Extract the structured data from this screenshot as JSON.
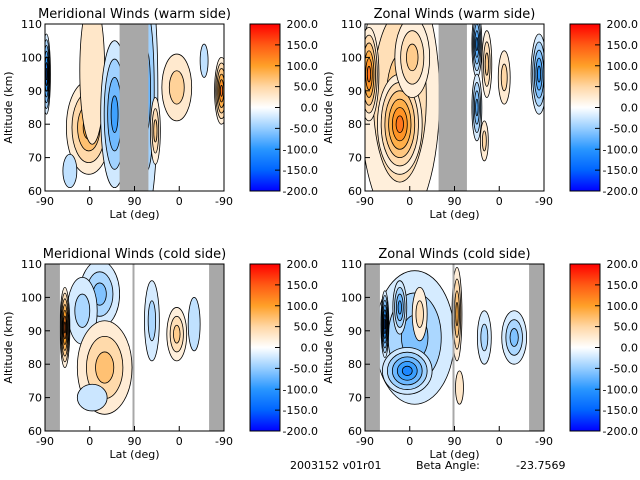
{
  "footer": {
    "id": "2003152 v01r01",
    "beta_label": "Beta Angle:",
    "beta_value": "-23.7569"
  },
  "chart_data": [
    {
      "type": "heatmap",
      "title": "Meridional Winds (warm side)",
      "xlabel": "Lat (deg)",
      "ylabel": "Altitude (km)",
      "xticks": [
        "-90",
        "0",
        "90",
        "0",
        "-90"
      ],
      "yticks": [
        "60",
        "70",
        "80",
        "90",
        "100",
        "110"
      ],
      "ylim": [
        60,
        110
      ],
      "colorbar_ticks": [
        "200.0",
        "150.0",
        "100.0",
        "50.0",
        "0.0",
        "-50.0",
        "-100.0",
        "-150.0",
        "-200.0"
      ],
      "clim": [
        -200,
        200
      ],
      "gaps": [
        [
          150,
          208
        ]
      ],
      "features": [
        {
          "t": 88,
          "alt": 79,
          "v": 95,
          "wt": 45,
          "ha": 14
        },
        {
          "t": 95,
          "alt": 96,
          "v": 30,
          "wt": 25,
          "ha": 22
        },
        {
          "t": 140,
          "alt": 83,
          "v": -90,
          "wt": 28,
          "ha": 22
        },
        {
          "t": 205,
          "alt": 90,
          "v": -70,
          "wt": 22,
          "ha": 36
        },
        {
          "t": 222,
          "alt": 78,
          "v": 60,
          "wt": 10,
          "ha": 10
        },
        {
          "t": 265,
          "alt": 91,
          "v": 55,
          "wt": 30,
          "ha": 10
        },
        {
          "t": 355,
          "alt": 90,
          "v": 130,
          "wt": 14,
          "ha": 10
        },
        {
          "t": 3,
          "alt": 95,
          "v": -140,
          "wt": 8,
          "ha": 12
        },
        {
          "t": 50,
          "alt": 66,
          "v": -30,
          "wt": 14,
          "ha": 5
        },
        {
          "t": 320,
          "alt": 99,
          "v": -30,
          "wt": 8,
          "ha": 5
        }
      ]
    },
    {
      "type": "heatmap",
      "title": "Zonal Winds (warm side)",
      "xlabel": "Lat (deg)",
      "ylabel": "Altitude (km)",
      "xticks": [
        "-90",
        "0",
        "90",
        "0",
        "-90"
      ],
      "yticks": [
        "60",
        "70",
        "80",
        "90",
        "100",
        "110"
      ],
      "ylim": [
        60,
        110
      ],
      "colorbar_ticks": [
        "200.0",
        "150.0",
        "100.0",
        "50.0",
        "0.0",
        "-50.0",
        "-100.0",
        "-150.0",
        "-200.0"
      ],
      "clim": [
        -200,
        200
      ],
      "gaps": [
        [
          148,
          205
        ]
      ],
      "features": [
        {
          "t": 70,
          "alt": 88,
          "v": 60,
          "wt": 80,
          "ha": 38
        },
        {
          "t": 70,
          "alt": 80,
          "v": 130,
          "wt": 45,
          "ha": 15
        },
        {
          "t": 8,
          "alt": 95,
          "v": 130,
          "wt": 20,
          "ha": 14
        },
        {
          "t": 95,
          "alt": 100,
          "v": 60,
          "wt": 35,
          "ha": 12
        },
        {
          "t": 225,
          "alt": 104,
          "v": -100,
          "wt": 10,
          "ha": 10
        },
        {
          "t": 225,
          "alt": 85,
          "v": -80,
          "wt": 10,
          "ha": 10
        },
        {
          "t": 245,
          "alt": 98,
          "v": 60,
          "wt": 10,
          "ha": 10
        },
        {
          "t": 280,
          "alt": 94,
          "v": 50,
          "wt": 12,
          "ha": 8
        },
        {
          "t": 350,
          "alt": 95,
          "v": -100,
          "wt": 16,
          "ha": 12
        },
        {
          "t": 240,
          "alt": 75,
          "v": 50,
          "wt": 8,
          "ha": 6
        }
      ]
    },
    {
      "type": "heatmap",
      "title": "Meridional Winds (cold side)",
      "xlabel": "Lat (deg)",
      "ylabel": "Altitude (km)",
      "xticks": [
        "-90",
        "0",
        "90",
        "0",
        "-90"
      ],
      "yticks": [
        "60",
        "70",
        "80",
        "90",
        "100",
        "110"
      ],
      "ylim": [
        60,
        110
      ],
      "colorbar_ticks": [
        "200.0",
        "150.0",
        "100.0",
        "50.0",
        "0.0",
        "-50.0",
        "-100.0",
        "-150.0",
        "-200.0"
      ],
      "clim": [
        -200,
        200
      ],
      "gaps": [
        [
          0,
          30
        ],
        [
          176,
          180
        ],
        [
          330,
          360
        ]
      ],
      "features": [
        {
          "t": 110,
          "alt": 101,
          "v": -60,
          "wt": 40,
          "ha": 10
        },
        {
          "t": 75,
          "alt": 96,
          "v": -40,
          "wt": 30,
          "ha": 10
        },
        {
          "t": 120,
          "alt": 79,
          "v": 70,
          "wt": 55,
          "ha": 14
        },
        {
          "t": 40,
          "alt": 91,
          "v": 140,
          "wt": 10,
          "ha": 12
        },
        {
          "t": 265,
          "alt": 89,
          "v": 60,
          "wt": 20,
          "ha": 8
        },
        {
          "t": 215,
          "alt": 93,
          "v": -40,
          "wt": 15,
          "ha": 12
        },
        {
          "t": 300,
          "alt": 92,
          "v": -30,
          "wt": 12,
          "ha": 8
        },
        {
          "t": 95,
          "alt": 70,
          "v": -25,
          "wt": 30,
          "ha": 4
        }
      ]
    },
    {
      "type": "heatmap",
      "title": "Zonal Winds (cold side)",
      "xlabel": "Lat (deg)",
      "ylabel": "Altitude (km)",
      "xticks": [
        "-90",
        "0",
        "90",
        "0",
        "-90"
      ],
      "yticks": [
        "60",
        "70",
        "80",
        "90",
        "100",
        "110"
      ],
      "ylim": [
        60,
        110
      ],
      "colorbar_ticks": [
        "200.0",
        "150.0",
        "100.0",
        "50.0",
        "0.0",
        "-50.0",
        "-100.0",
        "-150.0",
        "-200.0"
      ],
      "clim": [
        -200,
        200
      ],
      "gaps": [
        [
          0,
          30
        ],
        [
          176,
          180
        ],
        [
          330,
          360
        ]
      ],
      "features": [
        {
          "t": 100,
          "alt": 88,
          "v": -60,
          "wt": 80,
          "ha": 20
        },
        {
          "t": 85,
          "alt": 78,
          "v": -115,
          "wt": 50,
          "ha": 7
        },
        {
          "t": 70,
          "alt": 97,
          "v": -90,
          "wt": 14,
          "ha": 8
        },
        {
          "t": 110,
          "alt": 95,
          "v": 40,
          "wt": 15,
          "ha": 8
        },
        {
          "t": 185,
          "alt": 95,
          "v": 90,
          "wt": 10,
          "ha": 14
        },
        {
          "t": 40,
          "alt": 92,
          "v": -140,
          "wt": 8,
          "ha": 10
        },
        {
          "t": 300,
          "alt": 88,
          "v": -60,
          "wt": 25,
          "ha": 8
        },
        {
          "t": 240,
          "alt": 88,
          "v": -40,
          "wt": 14,
          "ha": 8
        },
        {
          "t": 190,
          "alt": 73,
          "v": 30,
          "wt": 8,
          "ha": 5
        }
      ]
    }
  ]
}
